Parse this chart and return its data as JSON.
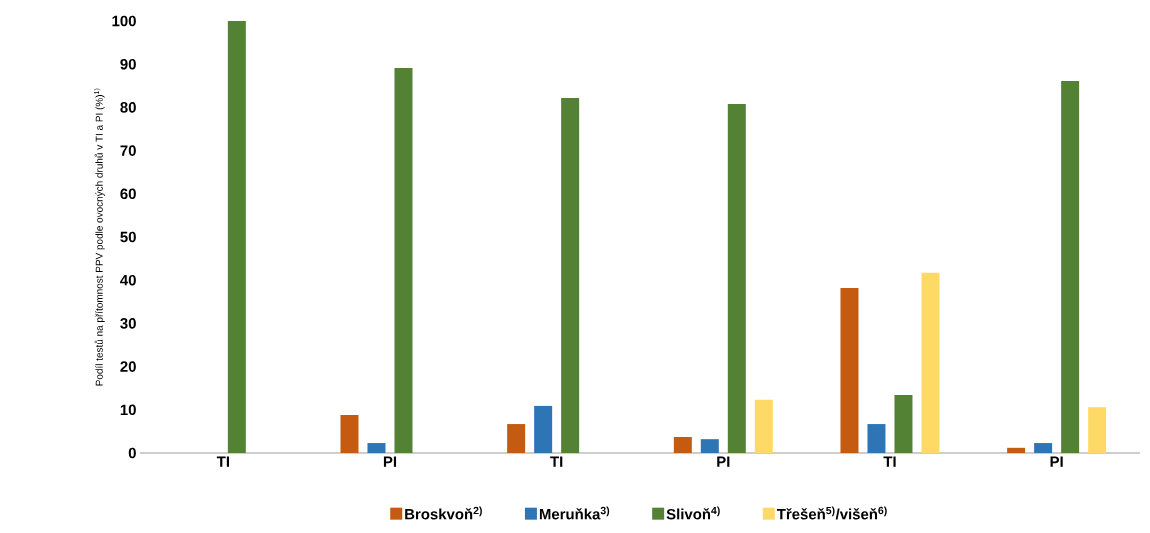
{
  "chart_data": {
    "type": "bar",
    "ylabel": "Podíl testů na přítomnost PPV podle ovocných druhů v TI a PI (%)$^{1)}$",
    "categories": [
      "TI",
      "PI",
      "TI",
      "PI",
      "TI",
      "PI"
    ],
    "series": [
      {
        "name": "Broskvoň$^{2)}$",
        "color": "#c55a11",
        "values": [
          0,
          8.8,
          6.7,
          3.7,
          38.2,
          1.2
        ]
      },
      {
        "name": "Meruňka$^{3)}$",
        "color": "#2e75b6",
        "values": [
          0,
          2.3,
          10.9,
          3.2,
          6.7,
          2.3
        ]
      },
      {
        "name": "Slivoň$^{4)}$",
        "color": "#548235",
        "values": [
          100,
          89.1,
          82.2,
          80.8,
          13.4,
          86.1
        ]
      },
      {
        "name": "Třešeň$^{5)}$/višeň$^{6)}$",
        "color": "#ffd966",
        "values": [
          0,
          0,
          0,
          12.3,
          41.7,
          10.6
        ]
      }
    ],
    "ylim": [
      0,
      100
    ],
    "yticks": [
      0,
      10,
      20,
      30,
      40,
      50,
      60,
      70,
      80,
      90,
      100
    ],
    "legend": "bottom"
  }
}
